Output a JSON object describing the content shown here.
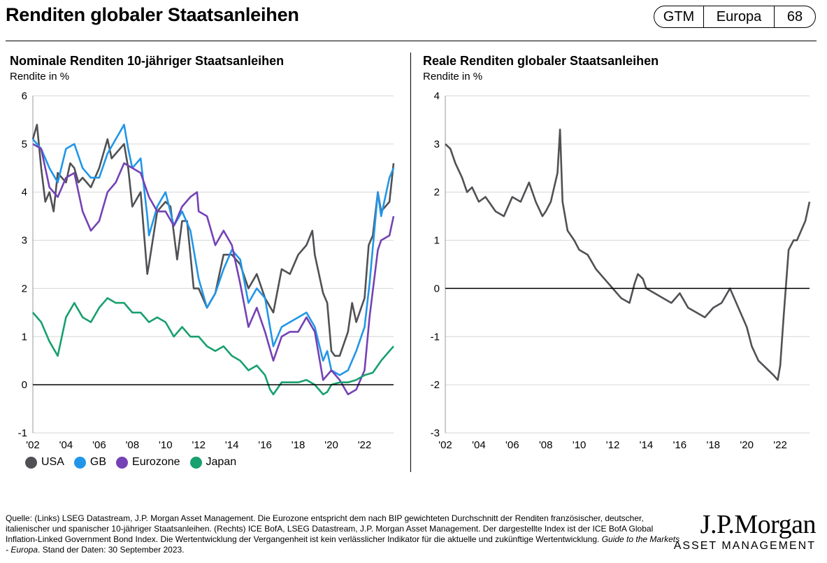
{
  "header": {
    "title": "Renditen globaler Staatsanleihen",
    "badge": [
      "GTM",
      "Europa",
      "68"
    ]
  },
  "footer": {
    "source_text": "Quelle: (Links) LSEG Datastream, J.P. Morgan Asset Management. Die Eurozone entspricht dem nach BIP gewichteten Durchschnitt der Renditen französischer, deutscher, italienischer und spanischer 10-jähriger Staatsanleihen. (Rechts) ICE BofA, LSEG Datastream, J.P. Morgan Asset Management. Der dargestellte Index ist der ICE BofA Global Inflation-Linked Government Bond Index. Die Wertentwicklung der Vergangenheit ist kein verlässlicher Indikator für die aktuelle und zukünftige Wertentwicklung.",
    "guide_text": "Guide to the Markets - Europa",
    "date_text": ". Stand der Daten: 30 September 2023.",
    "logo_line1": "J.P.Morgan",
    "logo_line2": "ASSET MANAGEMENT"
  },
  "chart_data": [
    {
      "type": "line",
      "title": "Nominale Renditen 10-jähriger Staatsanleihen",
      "ylabel": "Rendite in %",
      "ylim": [
        -1,
        6
      ],
      "yticks": [
        -1,
        0,
        1,
        2,
        3,
        4,
        5,
        6
      ],
      "xlim": [
        2002,
        2023.75
      ],
      "xticks": [
        "'02",
        "'04",
        "'06",
        "'08",
        "'10",
        "'12",
        "'14",
        "'16",
        "'18",
        "'20",
        "'22"
      ],
      "grid": "horizontal",
      "legend_position": "bottom",
      "series": [
        {
          "name": "USA",
          "color": "#505155",
          "x": [
            2002,
            2002.25,
            2002.5,
            2002.75,
            2003,
            2003.25,
            2003.5,
            2003.75,
            2004,
            2004.25,
            2004.5,
            2004.75,
            2005,
            2005.5,
            2006,
            2006.5,
            2006.75,
            2007,
            2007.5,
            2007.75,
            2008,
            2008.5,
            2008.9,
            2009,
            2009.5,
            2010,
            2010.3,
            2010.7,
            2011,
            2011.3,
            2011.7,
            2012,
            2012.5,
            2013,
            2013.5,
            2014,
            2014.5,
            2015,
            2015.5,
            2016,
            2016.5,
            2017,
            2017.5,
            2018,
            2018.5,
            2018.85,
            2019,
            2019.5,
            2019.75,
            2020,
            2020.2,
            2020.5,
            2021,
            2021.25,
            2021.5,
            2022,
            2022.25,
            2022.5,
            2022.8,
            2023,
            2023.5,
            2023.75
          ],
          "y": [
            5.1,
            5.4,
            4.5,
            3.8,
            4.0,
            3.6,
            4.4,
            4.3,
            4.2,
            4.6,
            4.5,
            4.2,
            4.3,
            4.1,
            4.5,
            5.1,
            4.7,
            4.8,
            5.0,
            4.5,
            3.7,
            4.0,
            2.3,
            2.5,
            3.6,
            3.8,
            3.7,
            2.6,
            3.4,
            3.4,
            2.0,
            2.0,
            1.6,
            1.9,
            2.7,
            2.7,
            2.5,
            2.0,
            2.3,
            1.8,
            1.5,
            2.4,
            2.3,
            2.7,
            2.9,
            3.2,
            2.7,
            1.9,
            1.7,
            0.7,
            0.6,
            0.6,
            1.1,
            1.7,
            1.3,
            1.8,
            2.9,
            3.1,
            4.0,
            3.6,
            3.8,
            4.6
          ]
        },
        {
          "name": "GB",
          "color": "#2196e8",
          "x": [
            2002,
            2002.5,
            2003,
            2003.5,
            2004,
            2004.5,
            2005,
            2005.5,
            2006,
            2006.5,
            2007,
            2007.5,
            2007.75,
            2008,
            2008.5,
            2008.9,
            2009,
            2009.5,
            2010,
            2010.5,
            2011,
            2011.5,
            2012,
            2012.5,
            2013,
            2013.5,
            2014,
            2014.5,
            2015,
            2015.5,
            2016,
            2016.5,
            2017,
            2017.5,
            2018,
            2018.5,
            2019,
            2019.5,
            2019.75,
            2020,
            2020.5,
            2021,
            2021.5,
            2022,
            2022.3,
            2022.8,
            2023,
            2023.5,
            2023.75
          ],
          "y": [
            5.1,
            4.9,
            4.5,
            4.2,
            4.9,
            5.0,
            4.5,
            4.3,
            4.3,
            4.8,
            5.1,
            5.4,
            4.9,
            4.5,
            4.7,
            3.5,
            3.1,
            3.7,
            4.0,
            3.3,
            3.6,
            3.2,
            2.2,
            1.6,
            1.9,
            2.4,
            2.8,
            2.6,
            1.7,
            2.0,
            1.8,
            0.8,
            1.2,
            1.3,
            1.4,
            1.5,
            1.2,
            0.5,
            0.7,
            0.3,
            0.2,
            0.3,
            0.7,
            1.2,
            2.1,
            4.0,
            3.5,
            4.3,
            4.5
          ]
        },
        {
          "name": "Eurozone",
          "color": "#7442b5",
          "x": [
            2002,
            2002.5,
            2003,
            2003.5,
            2004,
            2004.5,
            2005,
            2005.5,
            2006,
            2006.5,
            2007,
            2007.5,
            2008,
            2008.5,
            2009,
            2009.5,
            2010,
            2010.5,
            2011,
            2011.5,
            2011.9,
            2012,
            2012.5,
            2013,
            2013.5,
            2014,
            2014.5,
            2015,
            2015.5,
            2016,
            2016.5,
            2017,
            2017.5,
            2018,
            2018.5,
            2019,
            2019.5,
            2019.75,
            2020,
            2020.5,
            2021,
            2021.5,
            2022,
            2022.3,
            2022.8,
            2023,
            2023.5,
            2023.75
          ],
          "y": [
            5.0,
            4.9,
            4.1,
            3.9,
            4.3,
            4.4,
            3.6,
            3.2,
            3.4,
            4.0,
            4.2,
            4.6,
            4.5,
            4.4,
            3.9,
            3.6,
            3.6,
            3.3,
            3.7,
            3.9,
            4.0,
            3.6,
            3.5,
            2.9,
            3.2,
            2.9,
            2.1,
            1.2,
            1.6,
            1.1,
            0.5,
            1.0,
            1.1,
            1.1,
            1.4,
            1.1,
            0.1,
            0.2,
            0.3,
            0.1,
            -0.2,
            -0.1,
            0.3,
            1.4,
            2.8,
            3.0,
            3.1,
            3.5
          ]
        },
        {
          "name": "Japan",
          "color": "#18a06e",
          "x": [
            2002,
            2002.5,
            2003,
            2003.5,
            2004,
            2004.5,
            2005,
            2005.5,
            2006,
            2006.5,
            2007,
            2007.5,
            2008,
            2008.5,
            2009,
            2009.5,
            2010,
            2010.5,
            2011,
            2011.5,
            2012,
            2012.5,
            2013,
            2013.5,
            2014,
            2014.5,
            2015,
            2015.5,
            2016,
            2016.3,
            2016.5,
            2017,
            2017.5,
            2018,
            2018.5,
            2019,
            2019.5,
            2019.75,
            2020,
            2020.5,
            2021,
            2021.5,
            2022,
            2022.5,
            2023,
            2023.5,
            2023.75
          ],
          "y": [
            1.5,
            1.3,
            0.9,
            0.6,
            1.4,
            1.7,
            1.4,
            1.3,
            1.6,
            1.8,
            1.7,
            1.7,
            1.5,
            1.5,
            1.3,
            1.4,
            1.3,
            1.0,
            1.2,
            1.0,
            1.0,
            0.8,
            0.7,
            0.8,
            0.6,
            0.5,
            0.3,
            0.4,
            0.2,
            -0.1,
            -0.2,
            0.05,
            0.05,
            0.05,
            0.1,
            0.0,
            -0.2,
            -0.15,
            0.0,
            0.05,
            0.05,
            0.1,
            0.2,
            0.25,
            0.5,
            0.7,
            0.8
          ]
        }
      ]
    },
    {
      "type": "line",
      "title": "Reale Renditen globaler Staatsanleihen",
      "ylabel": "Rendite in %",
      "ylim": [
        -3,
        4
      ],
      "yticks": [
        -3,
        -2,
        -1,
        0,
        1,
        2,
        3,
        4
      ],
      "xlim": [
        2002,
        2023.75
      ],
      "xticks": [
        "'02",
        "'04",
        "'06",
        "'08",
        "'10",
        "'12",
        "'14",
        "'16",
        "'18",
        "'20",
        "'22"
      ],
      "grid": "horizontal",
      "series": [
        {
          "color": "#505155",
          "x": [
            2002,
            2002.3,
            2002.6,
            2003,
            2003.3,
            2003.6,
            2004,
            2004.4,
            2004.8,
            2005,
            2005.5,
            2006,
            2006.5,
            2007,
            2007.4,
            2007.8,
            2008,
            2008.3,
            2008.7,
            2008.85,
            2009,
            2009.3,
            2009.7,
            2010,
            2010.5,
            2011,
            2011.5,
            2012,
            2012.5,
            2013,
            2013.3,
            2013.5,
            2013.8,
            2014,
            2014.5,
            2015,
            2015.5,
            2016,
            2016.5,
            2017,
            2017.5,
            2018,
            2018.5,
            2019,
            2019.5,
            2020,
            2020.3,
            2020.7,
            2021,
            2021.3,
            2021.6,
            2021.85,
            2022,
            2022.2,
            2022.5,
            2022.8,
            2023,
            2023.5,
            2023.75
          ],
          "y": [
            3.0,
            2.9,
            2.6,
            2.3,
            2.0,
            2.1,
            1.8,
            1.9,
            1.7,
            1.6,
            1.5,
            1.9,
            1.8,
            2.2,
            1.8,
            1.5,
            1.6,
            1.8,
            2.4,
            3.3,
            1.8,
            1.2,
            1.0,
            0.8,
            0.7,
            0.4,
            0.2,
            0.0,
            -0.2,
            -0.3,
            0.1,
            0.3,
            0.2,
            0.0,
            -0.1,
            -0.2,
            -0.3,
            -0.1,
            -0.4,
            -0.5,
            -0.6,
            -0.4,
            -0.3,
            0.0,
            -0.4,
            -0.8,
            -1.2,
            -1.5,
            -1.6,
            -1.7,
            -1.8,
            -1.9,
            -1.6,
            -0.6,
            0.8,
            1.0,
            1.0,
            1.4,
            1.8
          ]
        }
      ]
    }
  ]
}
